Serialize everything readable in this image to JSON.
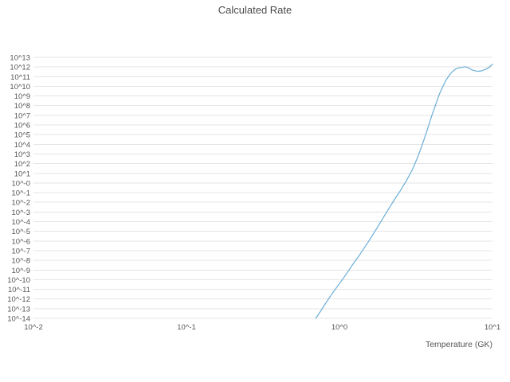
{
  "chart_data": {
    "type": "line",
    "title": "Calculated Rate",
    "xlabel": "Temperature (GK)",
    "ylabel": "",
    "x_scale": "log",
    "y_scale": "log",
    "xlim_log10": [
      -2,
      1
    ],
    "ylim_log10": [
      -14,
      13
    ],
    "grid": true,
    "legend": "none",
    "x_ticks_log10": [
      -2,
      -1,
      0,
      1
    ],
    "x_tick_labels": [
      "10^-2",
      "10^-1",
      "10^0",
      "10^1"
    ],
    "y_ticks_log10": [
      13,
      12,
      11,
      10,
      9,
      8,
      7,
      6,
      5,
      4,
      3,
      2,
      1,
      0,
      -1,
      -2,
      -3,
      -4,
      -5,
      -6,
      -7,
      -8,
      -9,
      -10,
      -11,
      -12,
      -13,
      -14
    ],
    "y_tick_labels": [
      "10^13",
      "10^12",
      "10^11",
      "10^10",
      "10^9",
      "10^8",
      "10^7",
      "10^6",
      "10^5",
      "10^4",
      "10^3",
      "10^2",
      "10^1",
      "10^-0",
      "10^-1",
      "10^-2",
      "10^-3",
      "10^-4",
      "10^-5",
      "10^-6",
      "10^-7",
      "10^-8",
      "10^-9",
      "10^-10",
      "10^-11",
      "10^-12",
      "10^-13",
      "10^-14"
    ],
    "colors": {
      "line": "#6baed6",
      "grid": "#e5e5e5",
      "text": "#555555",
      "text_strong": "#4a4a4a",
      "background": "#ffffff"
    },
    "series": [
      {
        "name": "Calculated Rate",
        "x": [
          0.7,
          0.75,
          0.8,
          0.9,
          1.0,
          1.1,
          1.2,
          1.4,
          1.6,
          1.8,
          2.0,
          2.25,
          2.5,
          2.75,
          3.0,
          3.25,
          3.5,
          3.75,
          4.0,
          4.25,
          4.5,
          4.75,
          5.0,
          5.25,
          5.5,
          5.75,
          6.0,
          6.25,
          6.5,
          6.75,
          7.0,
          7.25,
          7.5,
          8.0,
          8.5,
          9.0,
          9.5,
          10.0
        ],
        "log10_y": [
          -14.0,
          -13.3,
          -12.6,
          -11.4,
          -10.4,
          -9.5,
          -8.6,
          -7.1,
          -5.7,
          -4.4,
          -3.2,
          -1.9,
          -0.8,
          0.3,
          1.4,
          2.7,
          4.1,
          5.5,
          6.9,
          8.1,
          9.2,
          10.0,
          10.7,
          11.2,
          11.55,
          11.8,
          11.9,
          11.95,
          12.0,
          12.0,
          11.9,
          11.75,
          11.65,
          11.55,
          11.6,
          11.75,
          11.95,
          12.3
        ]
      }
    ]
  }
}
